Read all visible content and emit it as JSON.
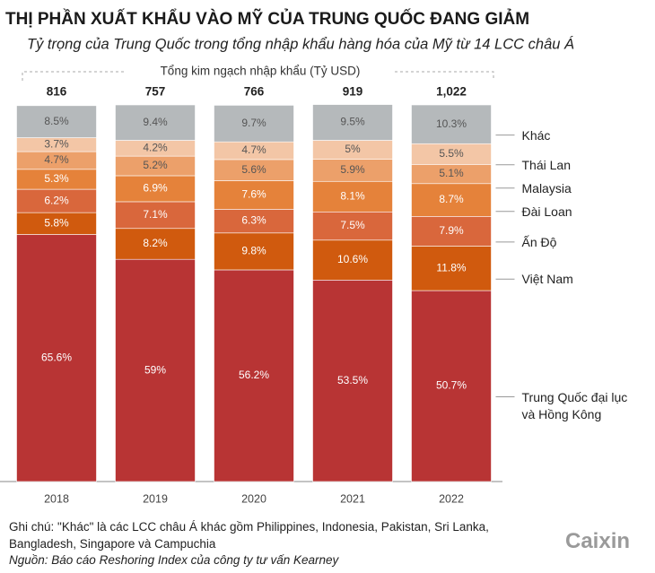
{
  "chart_data": {
    "type": "stacked_bar",
    "title": "THỊ PHẦN XUẤT KHẨU VÀO MỸ CỦA TRUNG QUỐC ĐANG GIẢM",
    "subtitle": "Tỷ trọng của Trung Quốc trong tổng nhập khẩu hàng hóa của Mỹ từ 14 LCC châu Á",
    "totals_label": "Tổng kim ngạch nhập khẩu (Tỷ USD)",
    "totals": {
      "values": [
        816,
        757,
        766,
        919,
        1022
      ],
      "value_labels": [
        "816",
        "757",
        "766",
        "919",
        "1,022"
      ]
    },
    "categories": [
      "2018",
      "2019",
      "2020",
      "2021",
      "2022"
    ],
    "ylim": [
      0,
      100
    ],
    "series": [
      {
        "name": "Trung Quốc đại lục và Hồng Kông",
        "color": "#b83434",
        "values": [
          65.6,
          59,
          56.2,
          53.5,
          50.7
        ],
        "value_labels": [
          "65.6%",
          "59%",
          "56.2%",
          "53.5%",
          "50.7%"
        ]
      },
      {
        "name": "Việt Nam",
        "color": "#d05a0e",
        "values": [
          5.8,
          8.2,
          9.8,
          10.6,
          11.8
        ],
        "value_labels": [
          "5.8%",
          "8.2%",
          "9.8%",
          "10.6%",
          "11.8%"
        ]
      },
      {
        "name": "Ấn Độ",
        "color": "#d9673c",
        "values": [
          6.2,
          7.1,
          6.3,
          7.5,
          7.9
        ],
        "value_labels": [
          "6.2%",
          "7.1%",
          "6.3%",
          "7.5%",
          "7.9%"
        ]
      },
      {
        "name": "Đài Loan",
        "color": "#e5823a",
        "values": [
          5.3,
          6.9,
          7.6,
          8.1,
          8.7
        ],
        "value_labels": [
          "5.3%",
          "6.9%",
          "7.6%",
          "8.1%",
          "8.7%"
        ]
      },
      {
        "name": "Malaysia",
        "color": "#eca06a",
        "values": [
          4.7,
          5.2,
          5.6,
          5.9,
          5.1
        ],
        "value_labels": [
          "4.7%",
          "5.2%",
          "5.6%",
          "5.9%",
          "5.1%"
        ]
      },
      {
        "name": "Thái Lan",
        "color": "#f3c6a6",
        "values": [
          3.7,
          4.2,
          4.7,
          5,
          5.5
        ],
        "value_labels": [
          "3.7%",
          "4.2%",
          "4.7%",
          "5%",
          "5.5%"
        ]
      },
      {
        "name": "Khác",
        "color": "#b5b9bb",
        "values": [
          8.5,
          9.4,
          9.7,
          9.5,
          10.3
        ],
        "value_labels": [
          "8.5%",
          "9.4%",
          "9.7%",
          "9.5%",
          "10.3%"
        ]
      }
    ]
  },
  "footer": {
    "note": "Ghi chú: \"Khác\" là các LCC châu Á khác gồm Philippines, Indonesia, Pakistan, Sri Lanka, Bangladesh, Singapore và Campuchia",
    "source": "Nguồn: Báo cáo Reshoring Index của công ty tư vấn Kearney",
    "logo": "Caixin"
  }
}
